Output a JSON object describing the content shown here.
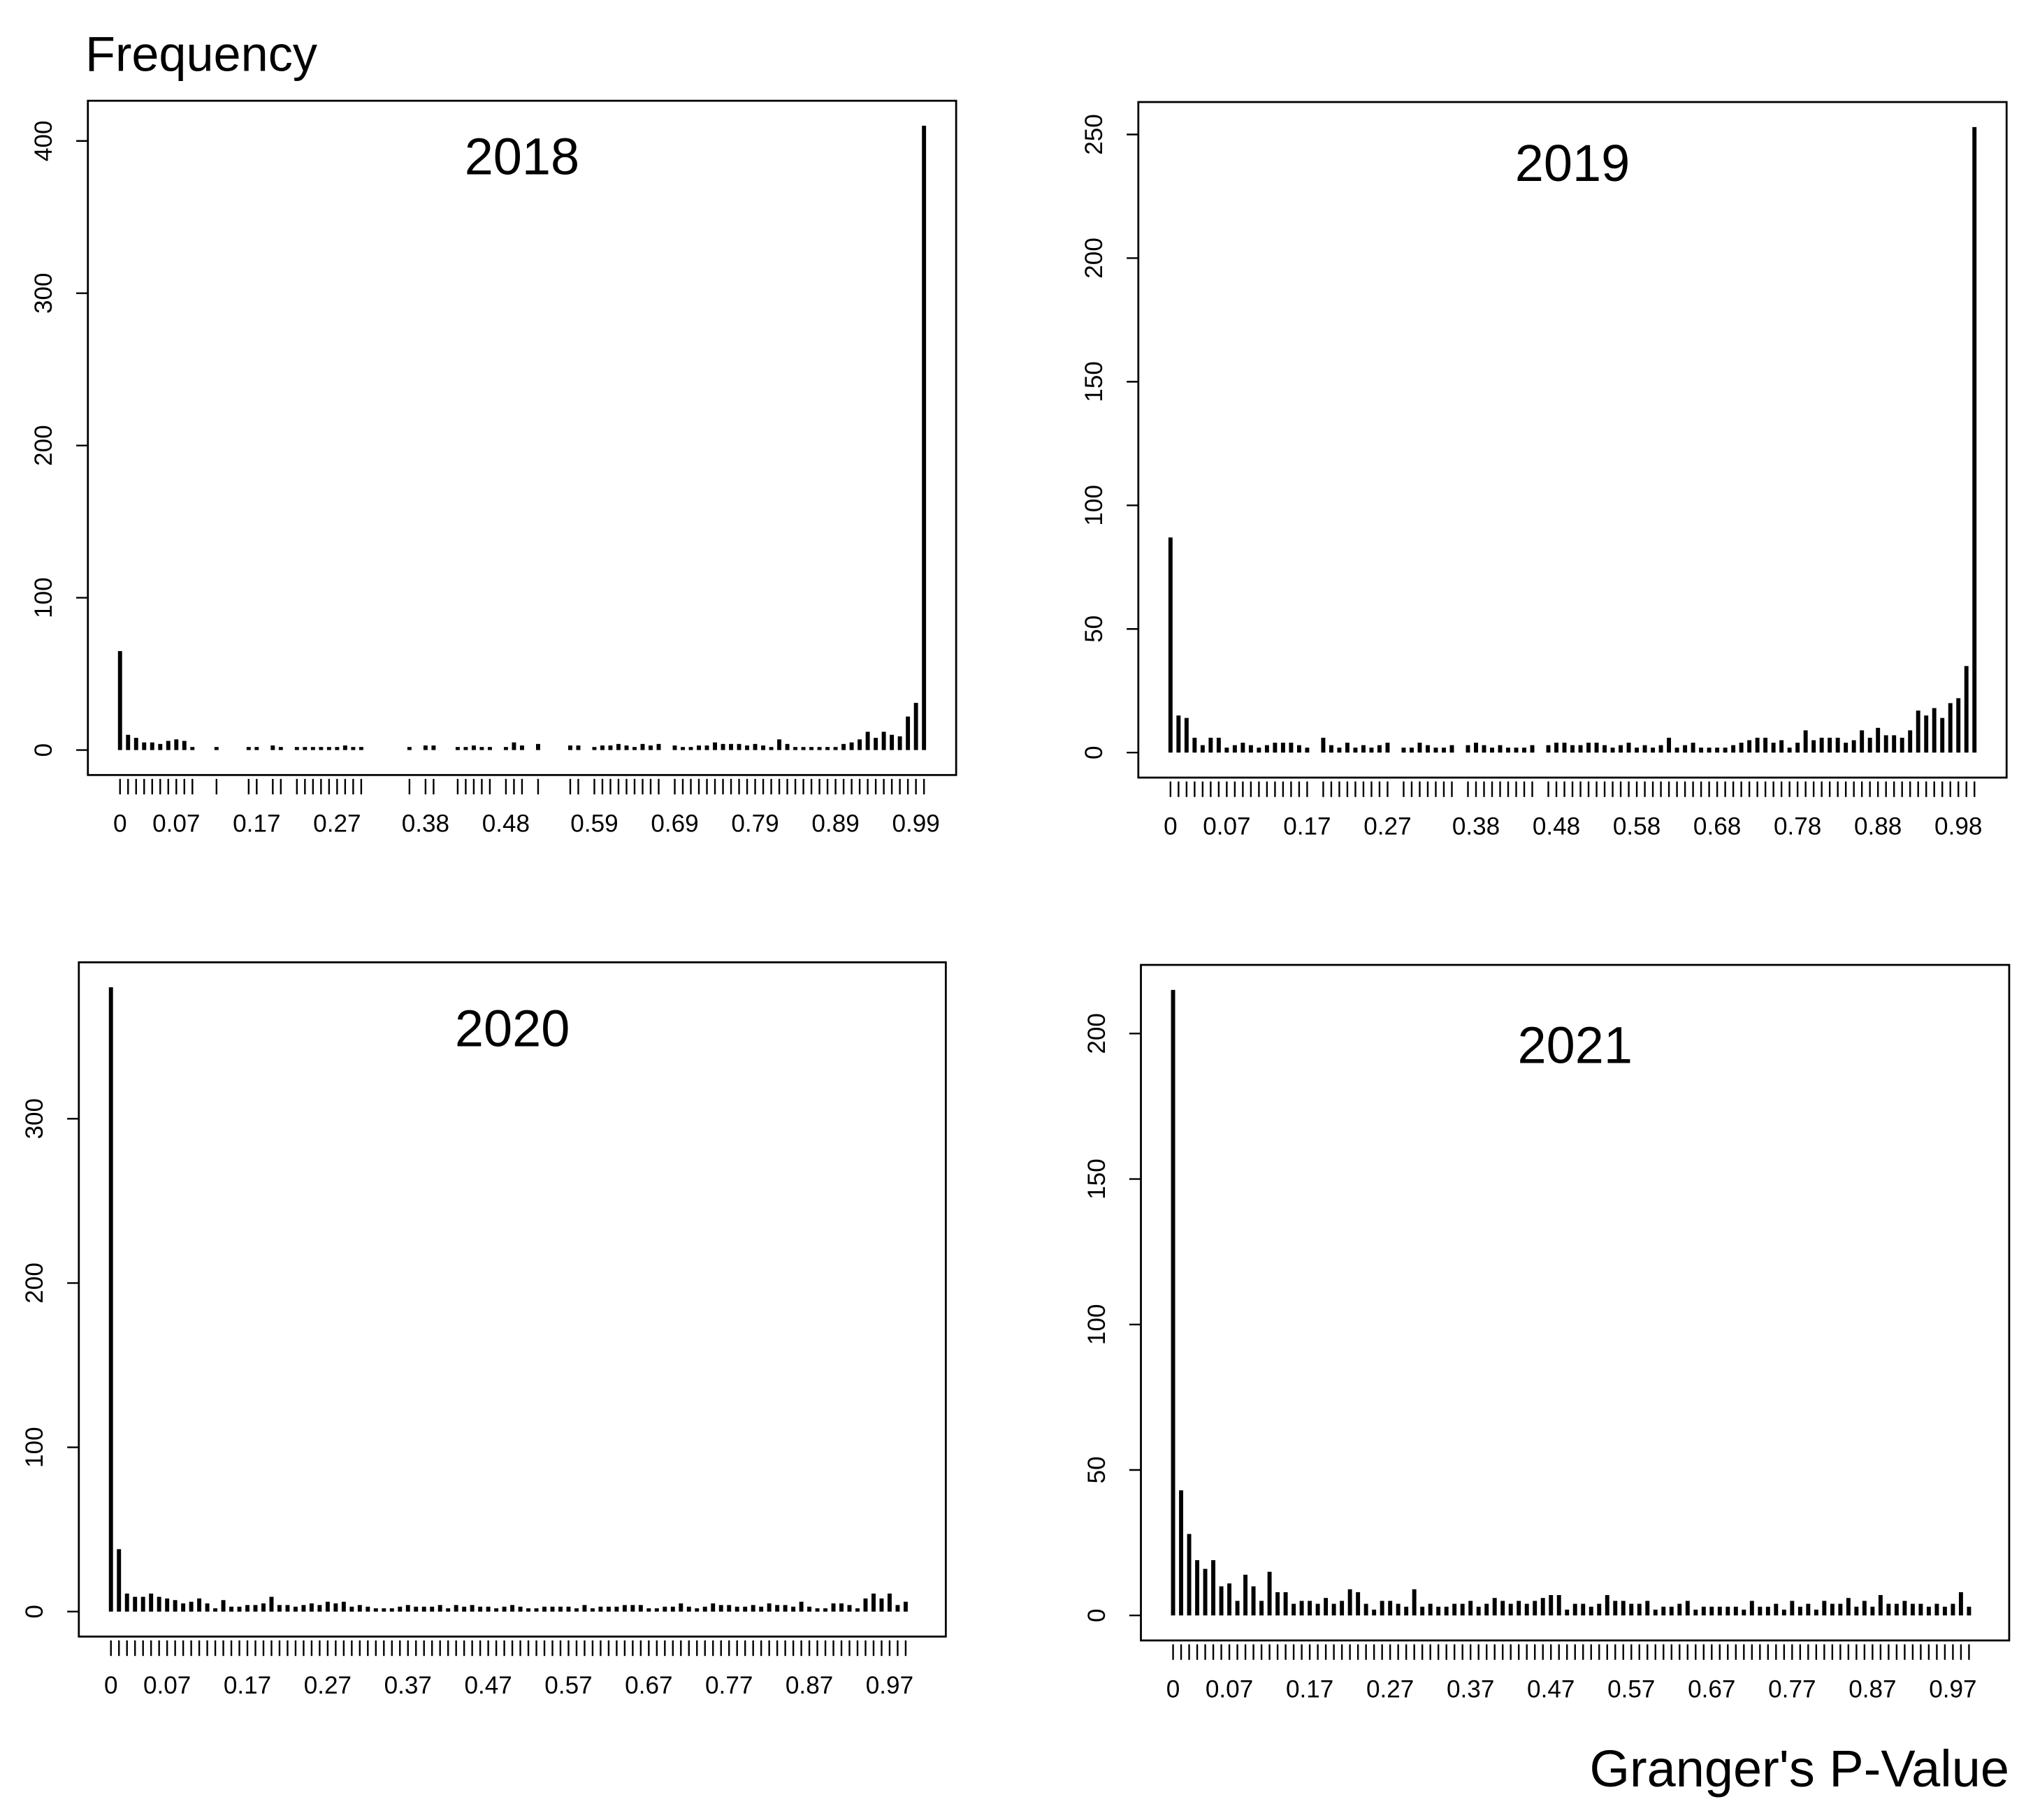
{
  "chart_data": [
    {
      "type": "bar",
      "title": "2018",
      "y_label": "Frequency",
      "color": "#000000",
      "x": [
        0,
        0.01,
        0.02,
        0.03,
        0.04,
        0.05,
        0.06,
        0.07,
        0.08,
        0.09,
        0.12,
        0.16,
        0.17,
        0.19,
        0.2,
        0.22,
        0.23,
        0.24,
        0.25,
        0.26,
        0.27,
        0.28,
        0.29,
        0.3,
        0.36,
        0.38,
        0.39,
        0.42,
        0.43,
        0.44,
        0.45,
        0.46,
        0.48,
        0.49,
        0.5,
        0.52,
        0.56,
        0.57,
        0.59,
        0.6,
        0.61,
        0.62,
        0.63,
        0.64,
        0.65,
        0.66,
        0.67,
        0.69,
        0.7,
        0.71,
        0.72,
        0.73,
        0.74,
        0.75,
        0.76,
        0.77,
        0.78,
        0.79,
        0.8,
        0.81,
        0.82,
        0.83,
        0.84,
        0.85,
        0.86,
        0.87,
        0.88,
        0.89,
        0.9,
        0.91,
        0.92,
        0.93,
        0.94,
        0.95,
        0.96,
        0.97,
        0.98,
        0.99,
        1
      ],
      "values": [
        65,
        10,
        8,
        5,
        5,
        4,
        6,
        7,
        6,
        2,
        2,
        2,
        2,
        3,
        2,
        2,
        2,
        2,
        2,
        2,
        2,
        3,
        2,
        2,
        2,
        3,
        3,
        2,
        2,
        3,
        2,
        2,
        2,
        5,
        3,
        4,
        3,
        3,
        2,
        3,
        3,
        4,
        3,
        2,
        4,
        3,
        4,
        3,
        2,
        2,
        3,
        3,
        5,
        4,
        4,
        4,
        3,
        4,
        3,
        2,
        7,
        4,
        2,
        2,
        2,
        2,
        2,
        2,
        4,
        5,
        7,
        12,
        8,
        12,
        10,
        9,
        22,
        31,
        410
      ],
      "xlim": [
        -0.04,
        1.04
      ],
      "ylim": [
        -16.4,
        426.4
      ],
      "yticks": [
        0,
        100,
        200,
        300,
        400
      ],
      "xticks": [
        0,
        0.07,
        0.17,
        0.27,
        0.38,
        0.48,
        0.59,
        0.69,
        0.79,
        0.89,
        0.99
      ]
    },
    {
      "type": "bar",
      "title": "2019",
      "color": "#000000",
      "x": [
        0,
        0.01,
        0.02,
        0.03,
        0.04,
        0.05,
        0.06,
        0.07,
        0.08,
        0.09,
        0.1,
        0.11,
        0.12,
        0.13,
        0.14,
        0.15,
        0.16,
        0.17,
        0.19,
        0.2,
        0.21,
        0.22,
        0.23,
        0.24,
        0.25,
        0.26,
        0.27,
        0.29,
        0.3,
        0.31,
        0.32,
        0.33,
        0.34,
        0.35,
        0.37,
        0.38,
        0.39,
        0.4,
        0.41,
        0.42,
        0.43,
        0.44,
        0.45,
        0.47,
        0.48,
        0.49,
        0.5,
        0.51,
        0.52,
        0.53,
        0.54,
        0.55,
        0.56,
        0.57,
        0.58,
        0.59,
        0.6,
        0.61,
        0.62,
        0.63,
        0.64,
        0.65,
        0.66,
        0.67,
        0.68,
        0.69,
        0.7,
        0.71,
        0.72,
        0.73,
        0.74,
        0.75,
        0.76,
        0.77,
        0.78,
        0.79,
        0.8,
        0.81,
        0.82,
        0.83,
        0.84,
        0.85,
        0.86,
        0.87,
        0.88,
        0.89,
        0.9,
        0.91,
        0.92,
        0.93,
        0.94,
        0.95,
        0.96,
        0.97,
        0.98,
        0.99,
        1
      ],
      "values": [
        87,
        15,
        14,
        6,
        3,
        6,
        6,
        2,
        3,
        4,
        3,
        2,
        3,
        4,
        4,
        4,
        3,
        2,
        6,
        3,
        2,
        4,
        2,
        3,
        2,
        3,
        4,
        2,
        2,
        4,
        3,
        2,
        2,
        3,
        3,
        4,
        3,
        2,
        3,
        2,
        2,
        2,
        3,
        3,
        4,
        4,
        3,
        3,
        4,
        4,
        3,
        2,
        3,
        4,
        2,
        3,
        2,
        3,
        6,
        2,
        3,
        4,
        2,
        2,
        2,
        2,
        3,
        4,
        5,
        6,
        6,
        4,
        5,
        2,
        4,
        9,
        5,
        6,
        6,
        6,
        4,
        5,
        9,
        6,
        10,
        7,
        7,
        6,
        9,
        17,
        15,
        18,
        14,
        20,
        22,
        35,
        253
      ],
      "xlim": [
        -0.04,
        1.04
      ],
      "ylim": [
        -10.12,
        263.12
      ],
      "yticks": [
        0,
        50,
        100,
        150,
        200,
        250
      ],
      "xticks": [
        0,
        0.07,
        0.17,
        0.27,
        0.38,
        0.48,
        0.58,
        0.68,
        0.78,
        0.88,
        0.98
      ]
    },
    {
      "type": "bar",
      "title": "2020",
      "color": "#000000",
      "x": [
        0,
        0.01,
        0.02,
        0.03,
        0.04,
        0.05,
        0.06,
        0.07,
        0.08,
        0.09,
        0.1,
        0.11,
        0.12,
        0.13,
        0.14,
        0.15,
        0.16,
        0.17,
        0.18,
        0.19,
        0.2,
        0.21,
        0.22,
        0.23,
        0.24,
        0.25,
        0.26,
        0.27,
        0.28,
        0.29,
        0.3,
        0.31,
        0.32,
        0.33,
        0.34,
        0.35,
        0.36,
        0.37,
        0.38,
        0.39,
        0.4,
        0.41,
        0.42,
        0.43,
        0.44,
        0.45,
        0.46,
        0.47,
        0.48,
        0.49,
        0.5,
        0.51,
        0.52,
        0.53,
        0.54,
        0.55,
        0.56,
        0.57,
        0.58,
        0.59,
        0.6,
        0.61,
        0.62,
        0.63,
        0.64,
        0.65,
        0.66,
        0.67,
        0.68,
        0.69,
        0.7,
        0.71,
        0.72,
        0.73,
        0.74,
        0.75,
        0.76,
        0.77,
        0.78,
        0.79,
        0.8,
        0.81,
        0.82,
        0.83,
        0.84,
        0.85,
        0.86,
        0.87,
        0.88,
        0.89,
        0.9,
        0.91,
        0.92,
        0.93,
        0.94,
        0.95,
        0.96,
        0.97,
        0.98,
        0.99
      ],
      "values": [
        380,
        38,
        11,
        9,
        9,
        11,
        9,
        8,
        7,
        5,
        6,
        8,
        5,
        2,
        7,
        3,
        3,
        4,
        4,
        5,
        9,
        4,
        4,
        3,
        4,
        5,
        4,
        6,
        5,
        6,
        3,
        4,
        3,
        2,
        2,
        2,
        3,
        4,
        3,
        3,
        3,
        4,
        2,
        4,
        3,
        4,
        3,
        3,
        2,
        3,
        4,
        3,
        2,
        2,
        3,
        3,
        3,
        3,
        2,
        4,
        2,
        3,
        3,
        3,
        4,
        4,
        4,
        2,
        2,
        3,
        3,
        5,
        3,
        2,
        3,
        5,
        4,
        4,
        3,
        3,
        4,
        3,
        5,
        4,
        4,
        3,
        6,
        3,
        2,
        2,
        5,
        5,
        4,
        2,
        8,
        11,
        8,
        11,
        4,
        6
      ],
      "xlim": [
        -0.04,
        1.04
      ],
      "ylim": [
        -15.2,
        395.2
      ],
      "yticks": [
        0,
        100,
        200,
        300
      ],
      "xticks": [
        0,
        0.07,
        0.17,
        0.27,
        0.37,
        0.47,
        0.57,
        0.67,
        0.77,
        0.87,
        0.97
      ]
    },
    {
      "type": "bar",
      "title": "2021",
      "x_label": "Granger's P-Value",
      "color": "#000000",
      "x": [
        0,
        0.01,
        0.02,
        0.03,
        0.04,
        0.05,
        0.06,
        0.07,
        0.08,
        0.09,
        0.1,
        0.11,
        0.12,
        0.13,
        0.14,
        0.15,
        0.16,
        0.17,
        0.18,
        0.19,
        0.2,
        0.21,
        0.22,
        0.23,
        0.24,
        0.25,
        0.26,
        0.27,
        0.28,
        0.29,
        0.3,
        0.31,
        0.32,
        0.33,
        0.34,
        0.35,
        0.36,
        0.37,
        0.38,
        0.39,
        0.4,
        0.41,
        0.42,
        0.43,
        0.44,
        0.45,
        0.46,
        0.47,
        0.48,
        0.49,
        0.5,
        0.51,
        0.52,
        0.53,
        0.54,
        0.55,
        0.56,
        0.57,
        0.58,
        0.59,
        0.6,
        0.61,
        0.62,
        0.63,
        0.64,
        0.65,
        0.66,
        0.67,
        0.68,
        0.69,
        0.7,
        0.71,
        0.72,
        0.73,
        0.74,
        0.75,
        0.76,
        0.77,
        0.78,
        0.79,
        0.8,
        0.81,
        0.82,
        0.83,
        0.84,
        0.85,
        0.86,
        0.87,
        0.88,
        0.89,
        0.9,
        0.91,
        0.92,
        0.93,
        0.94,
        0.95,
        0.96,
        0.97,
        0.98,
        0.99
      ],
      "values": [
        215,
        43,
        28,
        19,
        16,
        19,
        10,
        11,
        5,
        14,
        10,
        5,
        15,
        8,
        8,
        4,
        5,
        5,
        4,
        6,
        4,
        5,
        9,
        8,
        4,
        2,
        5,
        5,
        4,
        3,
        9,
        3,
        4,
        3,
        3,
        4,
        4,
        5,
        3,
        4,
        6,
        5,
        4,
        5,
        4,
        5,
        6,
        7,
        7,
        2,
        4,
        4,
        3,
        4,
        7,
        5,
        5,
        4,
        4,
        5,
        2,
        3,
        3,
        4,
        5,
        2,
        3,
        3,
        3,
        3,
        3,
        2,
        5,
        3,
        3,
        4,
        2,
        5,
        3,
        4,
        2,
        5,
        4,
        4,
        6,
        3,
        5,
        3,
        7,
        4,
        4,
        5,
        4,
        4,
        3,
        4,
        3,
        4,
        8,
        3
      ],
      "xlim": [
        -0.04,
        1.04
      ],
      "ylim": [
        -8.6,
        223.6
      ],
      "yticks": [
        0,
        50,
        100,
        150,
        200
      ],
      "xticks": [
        0,
        0.07,
        0.17,
        0.27,
        0.37,
        0.47,
        0.57,
        0.67,
        0.77,
        0.87,
        0.97
      ]
    }
  ]
}
